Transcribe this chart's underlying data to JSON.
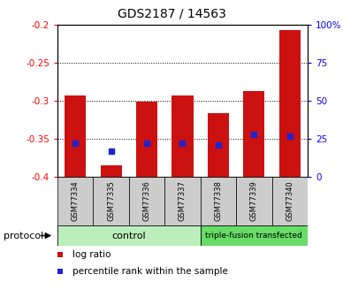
{
  "title": "GDS2187 / 14563",
  "samples": [
    "GSM77334",
    "GSM77335",
    "GSM77336",
    "GSM77337",
    "GSM77338",
    "GSM77339",
    "GSM77340"
  ],
  "log_ratio": [
    -0.293,
    -0.385,
    -0.301,
    -0.293,
    -0.316,
    -0.287,
    -0.207
  ],
  "percentile_rank": [
    22,
    17,
    22,
    22,
    21,
    28,
    27
  ],
  "ylim_left": [
    -0.4,
    -0.2
  ],
  "ylim_right": [
    0,
    100
  ],
  "yticks_left": [
    -0.4,
    -0.35,
    -0.3,
    -0.25,
    -0.2
  ],
  "yticks_right": [
    0,
    25,
    50,
    75,
    100
  ],
  "ytick_labels_right": [
    "0",
    "25",
    "50",
    "75",
    "100%"
  ],
  "bar_color": "#cc1111",
  "dot_color": "#2222cc",
  "bar_bottom": -0.4,
  "n_control": 4,
  "n_treatment": 3,
  "control_label": "control",
  "treatment_label": "triple-fusion transfected",
  "protocol_label": "protocol",
  "legend_log_ratio": "log ratio",
  "legend_percentile": "percentile rank within the sample",
  "control_bg": "#bbeebb",
  "treatment_bg": "#66dd66",
  "sample_bg": "#cccccc"
}
